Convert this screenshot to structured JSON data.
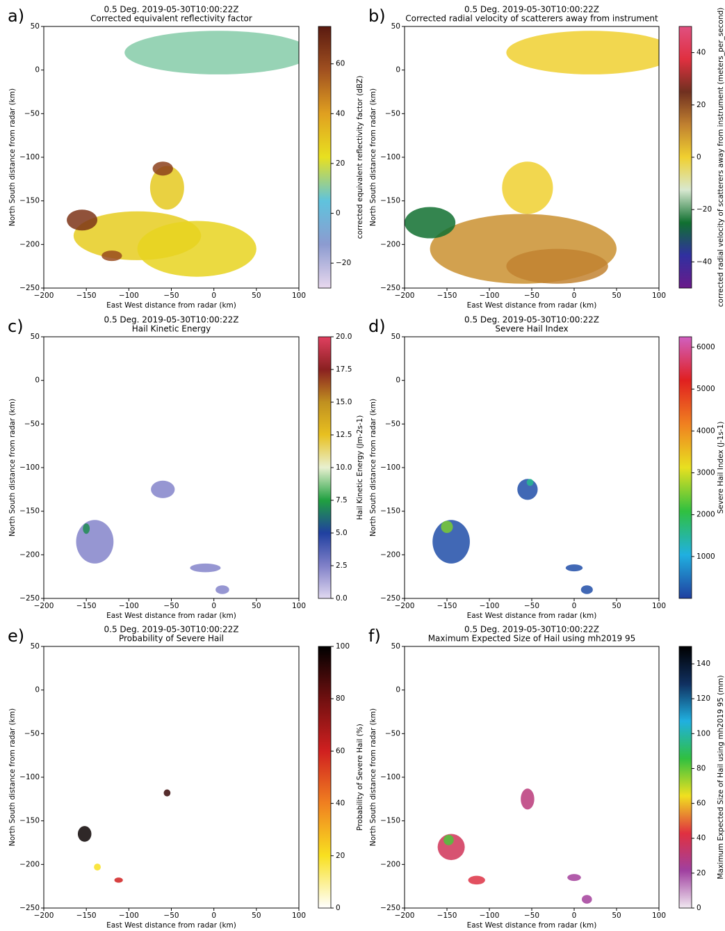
{
  "chart_data": [
    {
      "type": "radar",
      "label": "a)",
      "title": "0.5 Deg. 2019-05-30T10:00:22Z",
      "subtitle": "Corrected equivalent reflectivity factor",
      "xlabel": "East West distance from radar (km)",
      "ylabel": "North South distance from radar (km)",
      "xlim": [
        -200,
        100
      ],
      "xticks": [
        {
          "value": -200,
          "label": "−200"
        },
        {
          "value": -150,
          "label": "−150"
        },
        {
          "value": -100,
          "label": "−100"
        },
        {
          "value": -50,
          "label": "−50"
        },
        0,
        50,
        100
      ],
      "ylim": [
        -250,
        50
      ],
      "yticks": [
        {
          "value": -250,
          "label": "−250"
        },
        {
          "value": -200,
          "label": "−200"
        },
        {
          "value": -150,
          "label": "−150"
        },
        {
          "value": -100,
          "label": "−100"
        },
        {
          "value": -50,
          "label": "−50"
        },
        0,
        50
      ],
      "colorbar": {
        "label": "corrected equivalent reflectivity factor (dBZ)",
        "lim": [
          -30,
          75
        ],
        "ticks": [
          {
            "value": -20,
            "label": "−20"
          },
          0,
          20,
          40,
          60
        ],
        "colors": [
          "#e8d8ee",
          "#8c9bd0",
          "#5fc3dd",
          "#e8e020",
          "#e0a020",
          "#a05020",
          "#5a1a10"
        ]
      }
    },
    {
      "type": "radar",
      "label": "b)",
      "title": "0.5 Deg. 2019-05-30T10:00:22Z",
      "subtitle": "Corrected radial velocity of scatterers away from instrument",
      "xlabel": "East West distance from radar (km)",
      "ylabel": "North South distance from radar (km)",
      "xlim": [
        -200,
        100
      ],
      "xticks": [
        {
          "value": -200,
          "label": "−200"
        },
        {
          "value": -150,
          "label": "−150"
        },
        {
          "value": -100,
          "label": "−100"
        },
        {
          "value": -50,
          "label": "−50"
        },
        0,
        50,
        100
      ],
      "ylim": [
        -250,
        50
      ],
      "yticks": [
        {
          "value": -250,
          "label": "−250"
        },
        {
          "value": -200,
          "label": "−200"
        },
        {
          "value": -150,
          "label": "−150"
        },
        {
          "value": -100,
          "label": "−100"
        },
        {
          "value": -50,
          "label": "−50"
        },
        0,
        50
      ],
      "colorbar": {
        "label": "corrected radial velocity of scatterers away from instrument (meters_per_second)",
        "lim": [
          -50,
          50
        ],
        "ticks": [
          {
            "value": -40,
            "label": "−40"
          },
          {
            "value": -20,
            "label": "−20"
          },
          0,
          20,
          40
        ],
        "colors": [
          "#6a1a8a",
          "#3030a0",
          "#107030",
          "#d8e8d0",
          "#f0d030",
          "#c08030",
          "#703020",
          "#e03040",
          "#e05080"
        ]
      }
    },
    {
      "type": "radar",
      "label": "c)",
      "title": "0.5 Deg. 2019-05-30T10:00:22Z",
      "subtitle": "Hail Kinetic Energy",
      "xlabel": "East West distance from radar (km)",
      "ylabel": "North South distance from radar (km)",
      "xlim": [
        -200,
        100
      ],
      "xticks": [
        {
          "value": -200,
          "label": "−200"
        },
        {
          "value": -150,
          "label": "−150"
        },
        {
          "value": -100,
          "label": "−100"
        },
        {
          "value": -50,
          "label": "−50"
        },
        0,
        50,
        100
      ],
      "ylim": [
        -250,
        50
      ],
      "yticks": [
        {
          "value": -250,
          "label": "−250"
        },
        {
          "value": -200,
          "label": "−200"
        },
        {
          "value": -150,
          "label": "−150"
        },
        {
          "value": -100,
          "label": "−100"
        },
        {
          "value": -50,
          "label": "−50"
        },
        0,
        50
      ],
      "colorbar": {
        "label": "Hail Kinetic Energy (Jm-2s-1)",
        "lim": [
          0,
          20
        ],
        "ticks": [
          {
            "value": 0,
            "label": "0.0"
          },
          2.5,
          {
            "value": 5,
            "label": "5.0"
          },
          7.5,
          {
            "value": 10,
            "label": "10.0"
          },
          12.5,
          {
            "value": 15,
            "label": "15.0"
          },
          17.5,
          {
            "value": 20,
            "label": "20.0"
          }
        ],
        "colors": [
          "#e0d8f0",
          "#8080c8",
          "#2040a0",
          "#20a040",
          "#e8f0d0",
          "#e8c020",
          "#c09020",
          "#8a2020",
          "#e04060"
        ]
      }
    },
    {
      "type": "radar",
      "label": "d)",
      "title": "0.5 Deg. 2019-05-30T10:00:22Z",
      "subtitle": "Severe Hail Index",
      "xlabel": "East West distance from radar (km)",
      "ylabel": "North South distance from radar (km)",
      "xlim": [
        -200,
        100
      ],
      "xticks": [
        {
          "value": -200,
          "label": "−200"
        },
        {
          "value": -150,
          "label": "−150"
        },
        {
          "value": -100,
          "label": "−100"
        },
        {
          "value": -50,
          "label": "−50"
        },
        0,
        50,
        100
      ],
      "ylim": [
        -250,
        50
      ],
      "yticks": [
        {
          "value": -250,
          "label": "−250"
        },
        {
          "value": -200,
          "label": "−200"
        },
        {
          "value": -150,
          "label": "−150"
        },
        {
          "value": -100,
          "label": "−100"
        },
        {
          "value": -50,
          "label": "−50"
        },
        0,
        50
      ],
      "colorbar": {
        "label": "Severe Hail Index (J-1s-1)",
        "lim": [
          0,
          6250
        ],
        "ticks": [
          1000,
          2000,
          3000,
          4000,
          5000,
          6000
        ],
        "colors": [
          "#2040a0",
          "#20b0e0",
          "#30c040",
          "#e8e020",
          "#f08020",
          "#e02020",
          "#d060c0"
        ]
      }
    },
    {
      "type": "radar",
      "label": "e)",
      "title": "0.5 Deg. 2019-05-30T10:00:22Z",
      "subtitle": "Probability of Severe Hail",
      "xlabel": "East West distance from radar (km)",
      "ylabel": "North South distance from radar (km)",
      "xlim": [
        -200,
        100
      ],
      "xticks": [
        {
          "value": -200,
          "label": "−200"
        },
        {
          "value": -150,
          "label": "−150"
        },
        {
          "value": -100,
          "label": "−100"
        },
        {
          "value": -50,
          "label": "−50"
        },
        0,
        50,
        100
      ],
      "ylim": [
        -250,
        50
      ],
      "yticks": [
        {
          "value": -250,
          "label": "−250"
        },
        {
          "value": -200,
          "label": "−200"
        },
        {
          "value": -150,
          "label": "−150"
        },
        {
          "value": -100,
          "label": "−100"
        },
        {
          "value": -50,
          "label": "−50"
        },
        0,
        50
      ],
      "colorbar": {
        "label": "Probability of Severe Hail (%)",
        "lim": [
          0,
          100
        ],
        "ticks": [
          0,
          20,
          40,
          60,
          80,
          100
        ],
        "colors": [
          "#ffffff",
          "#f8e020",
          "#f08020",
          "#d02020",
          "#701010",
          "#000000"
        ]
      }
    },
    {
      "type": "radar",
      "label": "f)",
      "title": "0.5 Deg. 2019-05-30T10:00:22Z",
      "subtitle": "Maximum Expected Size of Hail using mh2019 95",
      "xlabel": "East West distance from radar (km)",
      "ylabel": "North South distance from radar (km)",
      "xlim": [
        -200,
        100
      ],
      "xticks": [
        {
          "value": -200,
          "label": "−200"
        },
        {
          "value": -150,
          "label": "−150"
        },
        {
          "value": -100,
          "label": "−100"
        },
        {
          "value": -50,
          "label": "−50"
        },
        0,
        50,
        100
      ],
      "ylim": [
        -250,
        50
      ],
      "yticks": [
        {
          "value": -250,
          "label": "−250"
        },
        {
          "value": -200,
          "label": "−200"
        },
        {
          "value": -150,
          "label": "−150"
        },
        {
          "value": -100,
          "label": "−100"
        },
        {
          "value": -50,
          "label": "−50"
        },
        0,
        50
      ],
      "colorbar": {
        "label": "Maximum Expected Size of Hail using mh2019 95 (mm)",
        "lim": [
          0,
          150
        ],
        "ticks": [
          0,
          20,
          40,
          60,
          80,
          100,
          120,
          140
        ],
        "colors": [
          "#f0e8f0",
          "#a040a0",
          "#e03040",
          "#f0e020",
          "#30c040",
          "#20b0e0",
          "#103060",
          "#000000"
        ]
      }
    }
  ]
}
